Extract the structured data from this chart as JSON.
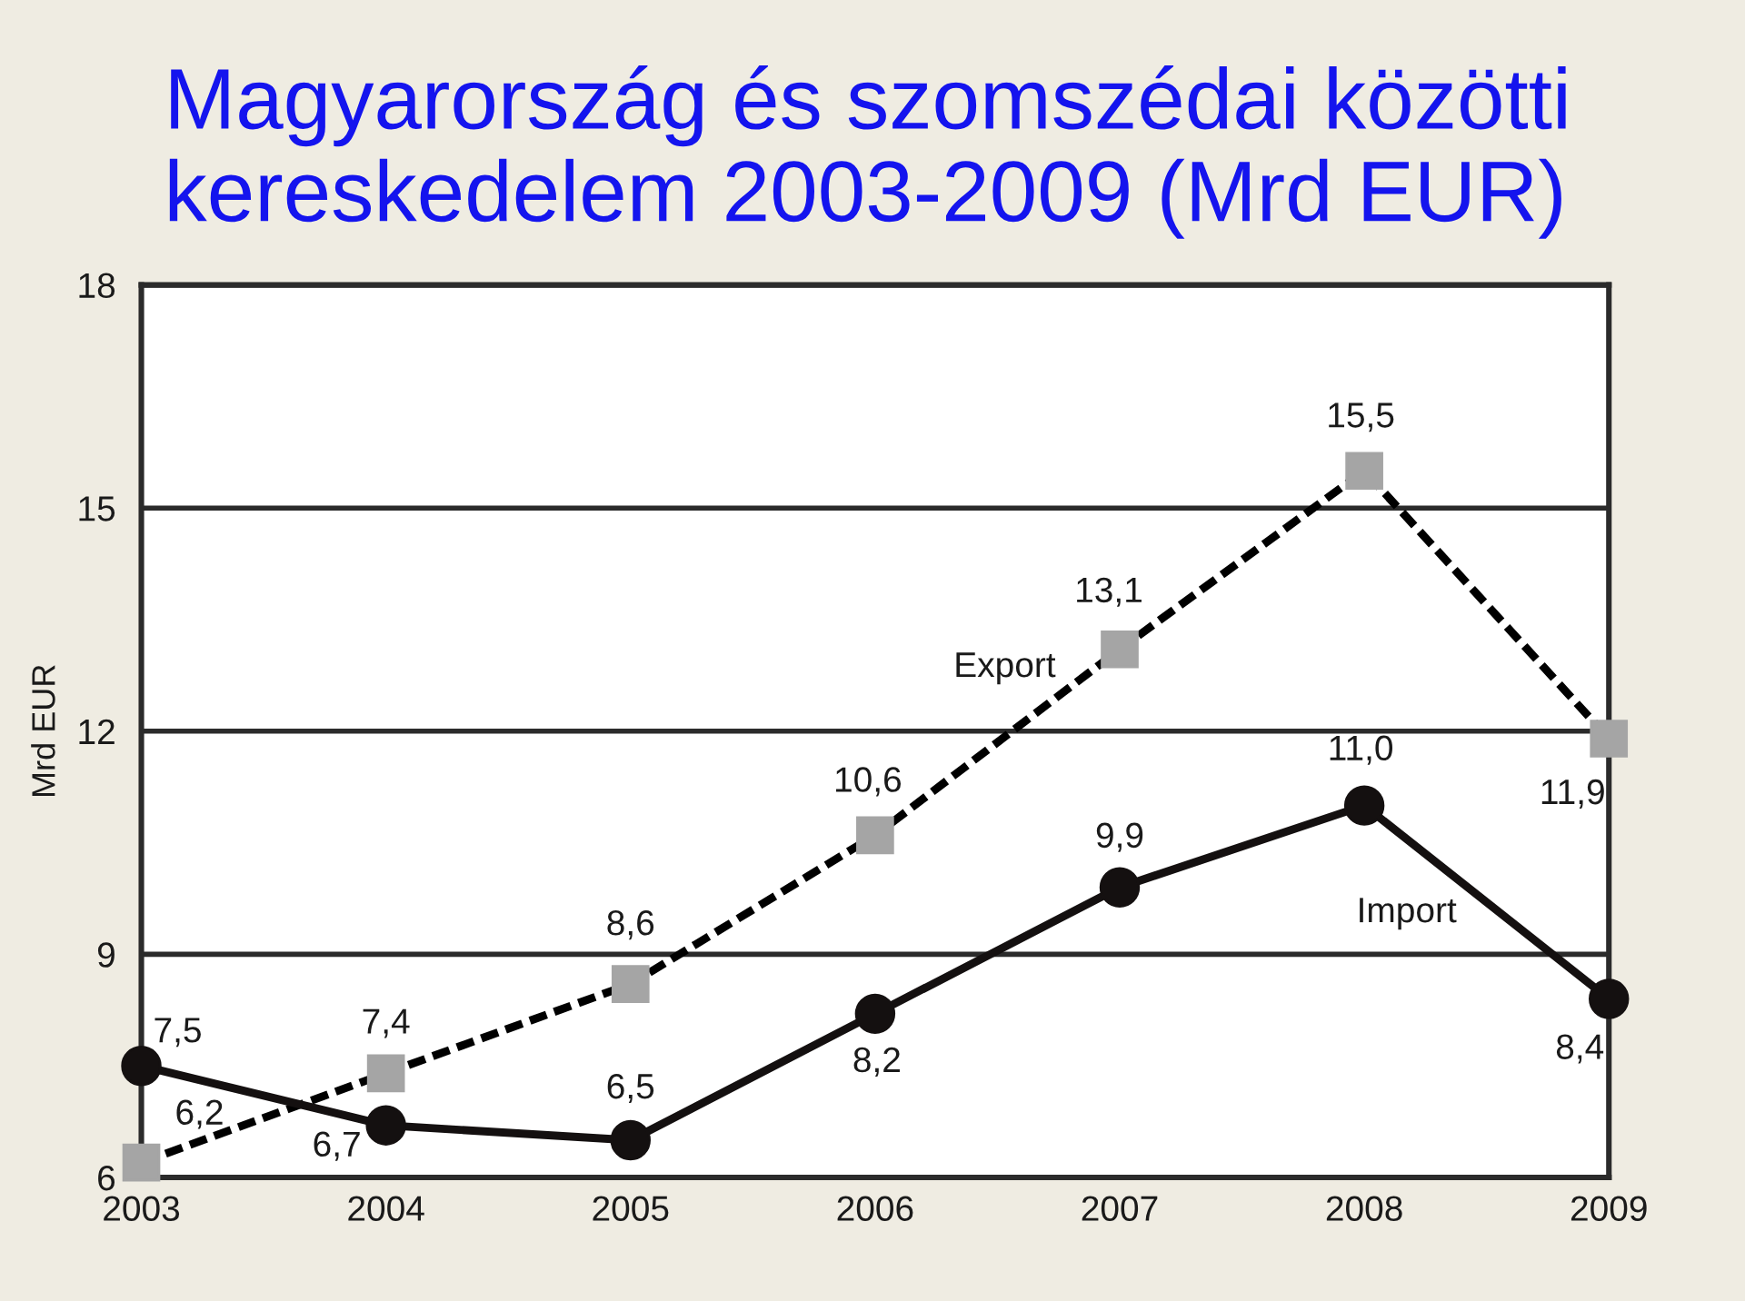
{
  "chart_data": {
    "type": "line",
    "title": "Magyarország és szomszédai közötti\nkereskedelem 2003-2009 (Mrd EUR)",
    "ylabel": "Mrd EUR",
    "categories": [
      "2003",
      "2004",
      "2005",
      "2006",
      "2007",
      "2008",
      "2009"
    ],
    "ylim": [
      6,
      18
    ],
    "yticks": [
      6,
      9,
      12,
      15,
      18
    ],
    "grid": "y",
    "legend": false,
    "series": [
      {
        "name": "Export",
        "color": "#000000",
        "colors": [
          "#a5a5a5",
          "#a5a5a5",
          "#a5a5a5",
          "#a5a5a5",
          "#a5a5a5",
          "#a5a5a5",
          "#a5a5a5"
        ],
        "marker": "square",
        "line_style": "dashed",
        "values": [
          6.2,
          7.4,
          8.6,
          10.6,
          13.1,
          15.5,
          11.9
        ],
        "value_labels": [
          "6,2",
          "7,4",
          "8,6",
          "10,6",
          "13,1",
          "15,5",
          "11,9"
        ]
      },
      {
        "name": "Import",
        "color": "#141010",
        "marker": "circle",
        "line_style": "solid",
        "values": [
          7.5,
          6.7,
          6.5,
          8.2,
          9.9,
          11.0,
          8.4
        ],
        "value_labels": [
          "7,5",
          "6,7",
          "6,5",
          "8,2",
          "9,9",
          "11,0",
          "8,4"
        ]
      }
    ]
  }
}
